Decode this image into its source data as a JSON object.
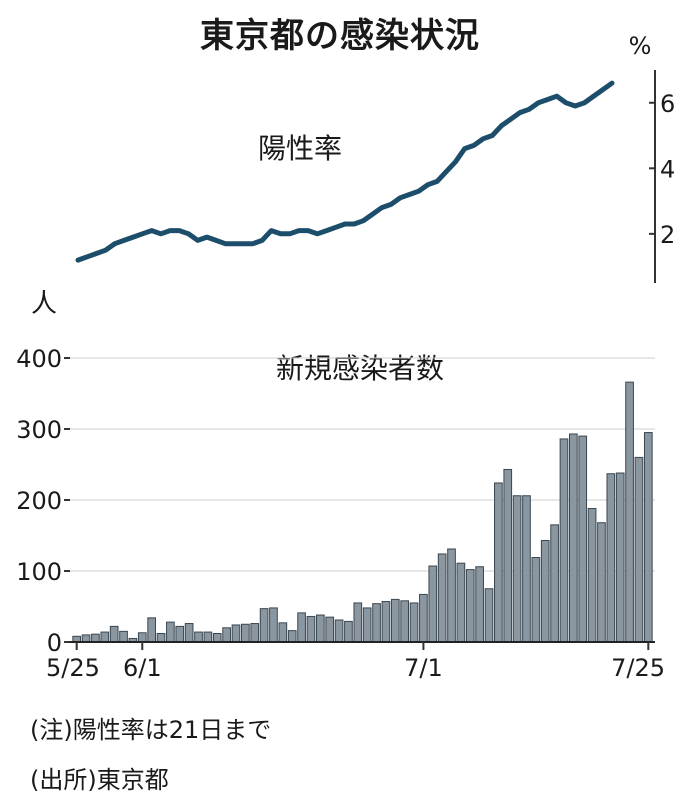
{
  "title": "東京都の感染状況",
  "notes": {
    "note": "(注)陽性率は21日まで",
    "source": "(出所)東京都"
  },
  "chart_data": [
    {
      "type": "line",
      "title": "陽性率",
      "yunit": "%",
      "ylim": [
        0.5,
        7
      ],
      "yticks": [
        "2",
        "4",
        "6"
      ],
      "x_start": "5/25",
      "x_end": "7/21",
      "values": [
        1.2,
        1.3,
        1.4,
        1.5,
        1.7,
        1.8,
        1.9,
        2.0,
        2.1,
        2.0,
        2.1,
        2.1,
        2.0,
        1.8,
        1.9,
        1.8,
        1.7,
        1.7,
        1.7,
        1.7,
        1.8,
        2.1,
        2.0,
        2.0,
        2.1,
        2.1,
        2.0,
        2.1,
        2.2,
        2.3,
        2.3,
        2.4,
        2.6,
        2.8,
        2.9,
        3.1,
        3.2,
        3.3,
        3.5,
        3.6,
        3.9,
        4.2,
        4.6,
        4.7,
        4.9,
        5.0,
        5.3,
        5.5,
        5.7,
        5.8,
        6.0,
        6.1,
        6.2,
        6.0,
        5.9,
        6.0,
        6.2,
        6.4,
        6.6
      ]
    },
    {
      "type": "bar",
      "title": "新規感染者数",
      "yunit": "人",
      "ylim": [
        0,
        400
      ],
      "yticks": [
        "0",
        "100",
        "200",
        "300",
        "400"
      ],
      "xticks": [
        "5/25",
        "6/1",
        "7/1",
        "7/25"
      ],
      "values": [
        8,
        10,
        11,
        14,
        22,
        15,
        5,
        13,
        34,
        12,
        28,
        22,
        26,
        14,
        14,
        12,
        20,
        24,
        25,
        26,
        47,
        48,
        27,
        16,
        41,
        36,
        38,
        35,
        31,
        29,
        55,
        48,
        54,
        57,
        60,
        58,
        55,
        67,
        107,
        124,
        131,
        111,
        102,
        106,
        75,
        224,
        243,
        206,
        206,
        119,
        143,
        165,
        286,
        293,
        290,
        188,
        168,
        237,
        238,
        366,
        260,
        295
      ]
    }
  ]
}
